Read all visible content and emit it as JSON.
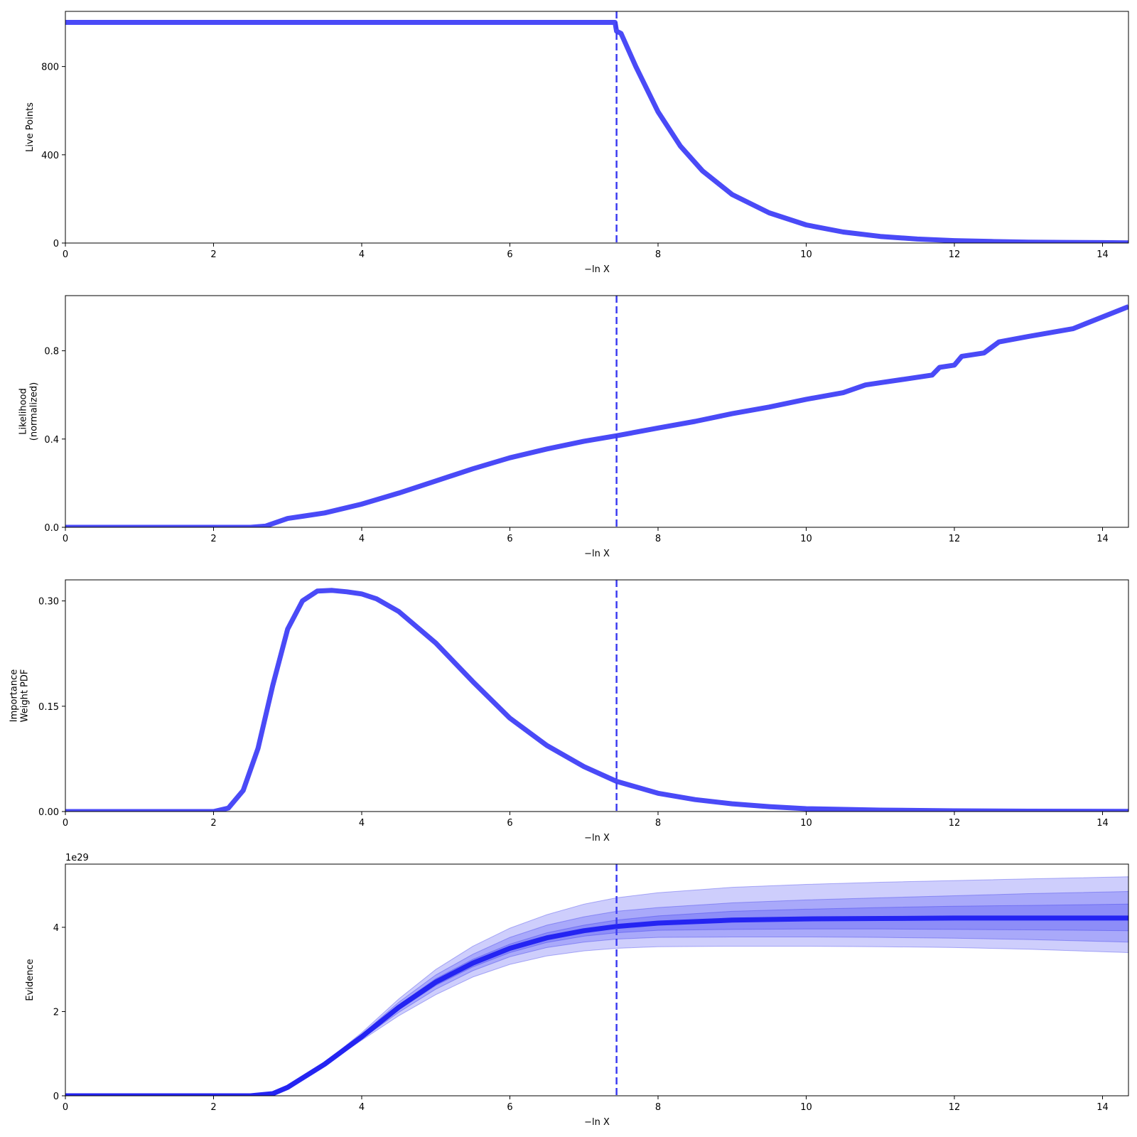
{
  "figure": {
    "background": "#ffffff"
  },
  "colors": {
    "line": "#4a4af7",
    "vline": "#3c3cf0",
    "mean": "#2424f2",
    "band": "#3b3bf5",
    "band_edge": "#2a2ae8"
  },
  "chart_data": [
    {
      "id": "live-points",
      "type": "line",
      "xlabel": "−ln X",
      "ylabel": [
        "Live Points"
      ],
      "xlim": [
        0,
        14.35
      ],
      "ylim": [
        0,
        1050
      ],
      "xticks": [
        0,
        2,
        4,
        6,
        8,
        10,
        12,
        14
      ],
      "yticks": [
        0,
        400,
        800
      ],
      "ytick_labels": [
        "0",
        "400",
        "800"
      ],
      "vline_x": 7.44,
      "series": [
        {
          "x": [
            0,
            1,
            2,
            3,
            4,
            5,
            6,
            7,
            7.42,
            7.44,
            7.5,
            7.7,
            8.0,
            8.3,
            8.6,
            9.0,
            9.5,
            10.0,
            10.5,
            11.0,
            11.5,
            12.0,
            12.5,
            13.0,
            13.5,
            14.0,
            14.35
          ],
          "y": [
            1000,
            1000,
            1000,
            1000,
            1000,
            1000,
            1000,
            1000,
            1000,
            960,
            950,
            800,
            595,
            440,
            327,
            220,
            137,
            82,
            50,
            30,
            18,
            11,
            7,
            4,
            3,
            2,
            1
          ]
        }
      ]
    },
    {
      "id": "likelihood",
      "type": "line",
      "xlabel": "−ln X",
      "ylabel": [
        "Likelihood",
        "(normalized)"
      ],
      "xlim": [
        0,
        14.35
      ],
      "ylim": [
        0,
        1.05
      ],
      "xticks": [
        0,
        2,
        4,
        6,
        8,
        10,
        12,
        14
      ],
      "yticks": [
        0,
        0.4,
        0.8
      ],
      "ytick_labels": [
        "0.0",
        "0.4",
        "0.8"
      ],
      "vline_x": 7.44,
      "series": [
        {
          "x": [
            0,
            2.5,
            2.7,
            3.0,
            3.2,
            3.5,
            4.0,
            4.5,
            5.0,
            5.5,
            6.0,
            6.5,
            7.0,
            7.44,
            8.0,
            8.5,
            9.0,
            9.5,
            10.0,
            10.5,
            10.8,
            11.0,
            11.3,
            11.7,
            11.8,
            12.0,
            12.1,
            12.4,
            12.5,
            12.6,
            13.0,
            13.6,
            14.35
          ],
          "y": [
            0.0,
            0.0,
            0.005,
            0.04,
            0.05,
            0.065,
            0.105,
            0.155,
            0.21,
            0.265,
            0.315,
            0.355,
            0.39,
            0.415,
            0.45,
            0.48,
            0.515,
            0.545,
            0.58,
            0.61,
            0.645,
            0.655,
            0.67,
            0.69,
            0.725,
            0.735,
            0.775,
            0.79,
            0.815,
            0.84,
            0.865,
            0.9,
            1.0
          ]
        }
      ]
    },
    {
      "id": "importance-weight",
      "type": "line",
      "xlabel": "−ln X",
      "ylabel": [
        "Importance",
        "Weight PDF"
      ],
      "xlim": [
        0,
        14.35
      ],
      "ylim": [
        0,
        0.33
      ],
      "xticks": [
        0,
        2,
        4,
        6,
        8,
        10,
        12,
        14
      ],
      "yticks": [
        0,
        0.15,
        0.3
      ],
      "ytick_labels": [
        "0.00",
        "0.15",
        "0.30"
      ],
      "vline_x": 7.44,
      "series": [
        {
          "x": [
            0,
            2.0,
            2.2,
            2.4,
            2.6,
            2.8,
            3.0,
            3.2,
            3.4,
            3.6,
            3.8,
            4.0,
            4.2,
            4.5,
            5.0,
            5.5,
            6.0,
            6.5,
            7.0,
            7.44,
            8.0,
            8.5,
            9.0,
            9.5,
            10.0,
            11.0,
            12.0,
            13.0,
            14.35
          ],
          "y": [
            0.0,
            0.0,
            0.005,
            0.03,
            0.09,
            0.18,
            0.26,
            0.3,
            0.314,
            0.315,
            0.313,
            0.31,
            0.303,
            0.285,
            0.24,
            0.185,
            0.133,
            0.094,
            0.064,
            0.043,
            0.026,
            0.017,
            0.011,
            0.007,
            0.004,
            0.002,
            0.001,
            0.0005,
            0.0002
          ]
        }
      ]
    },
    {
      "id": "evidence",
      "type": "area",
      "xlabel": "−ln X",
      "ylabel": [
        "Evidence"
      ],
      "offset_text": "1e29",
      "xlim": [
        0,
        14.35
      ],
      "ylim": [
        0,
        5.5
      ],
      "xticks": [
        0,
        2,
        4,
        6,
        8,
        10,
        12,
        14
      ],
      "yticks": [
        0,
        2,
        4
      ],
      "ytick_labels": [
        "0",
        "2",
        "4"
      ],
      "vline_x": 7.44,
      "x": [
        0,
        2.5,
        2.8,
        3.0,
        3.5,
        4.0,
        4.5,
        5.0,
        5.5,
        6.0,
        6.5,
        7.0,
        7.44,
        8.0,
        9.0,
        10.0,
        11.0,
        12.0,
        13.0,
        14.35
      ],
      "mean": [
        0.0,
        0.0,
        0.05,
        0.2,
        0.75,
        1.4,
        2.1,
        2.7,
        3.15,
        3.5,
        3.75,
        3.92,
        4.02,
        4.1,
        4.17,
        4.2,
        4.21,
        4.22,
        4.22,
        4.22
      ],
      "bands": [
        {
          "lower": [
            0.0,
            0.0,
            0.05,
            0.19,
            0.72,
            1.32,
            1.9,
            2.4,
            2.82,
            3.12,
            3.32,
            3.44,
            3.5,
            3.54,
            3.55,
            3.55,
            3.54,
            3.52,
            3.48,
            3.4
          ],
          "upper": [
            0.0,
            0.0,
            0.05,
            0.21,
            0.79,
            1.5,
            2.3,
            3.0,
            3.55,
            3.98,
            4.3,
            4.55,
            4.7,
            4.82,
            4.95,
            5.02,
            5.07,
            5.11,
            5.15,
            5.2
          ]
        },
        {
          "lower": [
            0.0,
            0.0,
            0.05,
            0.195,
            0.73,
            1.35,
            1.98,
            2.53,
            2.97,
            3.3,
            3.52,
            3.65,
            3.72,
            3.76,
            3.77,
            3.77,
            3.76,
            3.74,
            3.71,
            3.65
          ],
          "upper": [
            0.0,
            0.0,
            0.05,
            0.205,
            0.77,
            1.46,
            2.22,
            2.87,
            3.36,
            3.76,
            4.05,
            4.25,
            4.38,
            4.47,
            4.58,
            4.65,
            4.7,
            4.75,
            4.8,
            4.85
          ]
        },
        {
          "lower": [
            0.0,
            0.0,
            0.05,
            0.198,
            0.74,
            1.37,
            2.04,
            2.62,
            3.06,
            3.4,
            3.64,
            3.79,
            3.87,
            3.93,
            3.95,
            3.96,
            3.96,
            3.95,
            3.94,
            3.92
          ],
          "upper": [
            0.0,
            0.0,
            0.05,
            0.202,
            0.76,
            1.43,
            2.16,
            2.78,
            3.24,
            3.6,
            3.87,
            4.05,
            4.17,
            4.27,
            4.38,
            4.43,
            4.47,
            4.5,
            4.52,
            4.55
          ]
        }
      ]
    }
  ]
}
